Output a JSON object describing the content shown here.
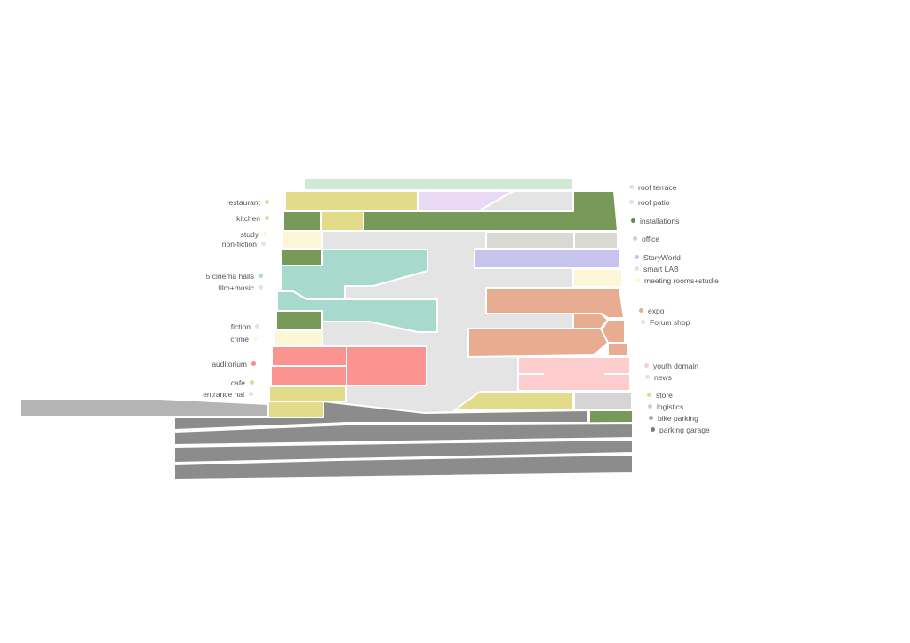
{
  "colors": {
    "roof_terrace": "#cfe9d4",
    "roof_patio": "#e9d9f5",
    "installations": "#77995a",
    "office": "#d9d8d2",
    "storyworld": "#c6c4ec",
    "smart_lab": "#e6e6e6",
    "meeting": "#fdf6d7",
    "expo": "#e8ad90",
    "youth": "#fdcccc",
    "store": "#e2dc8a",
    "study": "#fdf6d7",
    "cinema": "#a8d9cd",
    "auditorium": "#fb9390",
    "logistics": "#d5d5d5",
    "bike_parking": "#b4b4b4",
    "parking": "#8c8c8c",
    "atrium": "#e4e4e4"
  },
  "legend_left": [
    {
      "key": "restaurant",
      "label": "restaurant",
      "color": "#e2dc8a"
    },
    {
      "key": "kitchen",
      "label": "kitchen",
      "color": "#e2dc8a"
    },
    {
      "key": "study",
      "label": "study",
      "color": "#fdf6d7"
    },
    {
      "key": "non_fiction",
      "label": "non-fiction",
      "color": "#e2e2e2"
    },
    {
      "key": "cinema_halls",
      "label": "5 cinema halls",
      "color": "#a8d9cd"
    },
    {
      "key": "film_music",
      "label": "film+music",
      "color": "#e2e2e2"
    },
    {
      "key": "fiction",
      "label": "fiction",
      "color": "#e2e2e2"
    },
    {
      "key": "crime",
      "label": "crime",
      "color": "#fdf6d7"
    },
    {
      "key": "auditorium",
      "label": "auditorium",
      "color": "#fb8b86"
    },
    {
      "key": "cafe",
      "label": "cafe",
      "color": "#e2dc8a"
    },
    {
      "key": "entrance_hal",
      "label": "entrance hal",
      "color": "#e2e2e2"
    }
  ],
  "legend_right": [
    {
      "key": "roof_terrace",
      "label": "roof terrace",
      "color": "#cfe9d4"
    },
    {
      "key": "roof_patio",
      "label": "roof patio",
      "color": "#e9d9f5"
    },
    {
      "key": "installations",
      "label": "installations",
      "color": "#5e8a45"
    },
    {
      "key": "office",
      "label": "office",
      "color": "#d0d0d0"
    },
    {
      "key": "storyworld",
      "label": "StoryWorld",
      "color": "#c6c4ec"
    },
    {
      "key": "smart_lab",
      "label": "smart LAB",
      "color": "#e2e2e2"
    },
    {
      "key": "meeting_rooms",
      "label": "meeting rooms+studie",
      "color": "#fdf6d7"
    },
    {
      "key": "expo",
      "label": "expo",
      "color": "#e8ad90"
    },
    {
      "key": "forum_shop",
      "label": "Forum shop",
      "color": "#e2e2e2"
    },
    {
      "key": "youth_domain",
      "label": "youth domain",
      "color": "#fdcccc"
    },
    {
      "key": "news",
      "label": "news",
      "color": "#e2e2e2"
    },
    {
      "key": "store",
      "label": "store",
      "color": "#e2dc8a"
    },
    {
      "key": "logistics",
      "label": "logistics",
      "color": "#d0d0d0"
    },
    {
      "key": "bike_parking",
      "label": "bike parking",
      "color": "#a8a8a8"
    },
    {
      "key": "parking_garage",
      "label": "parking garage",
      "color": "#7c7c7c"
    }
  ]
}
